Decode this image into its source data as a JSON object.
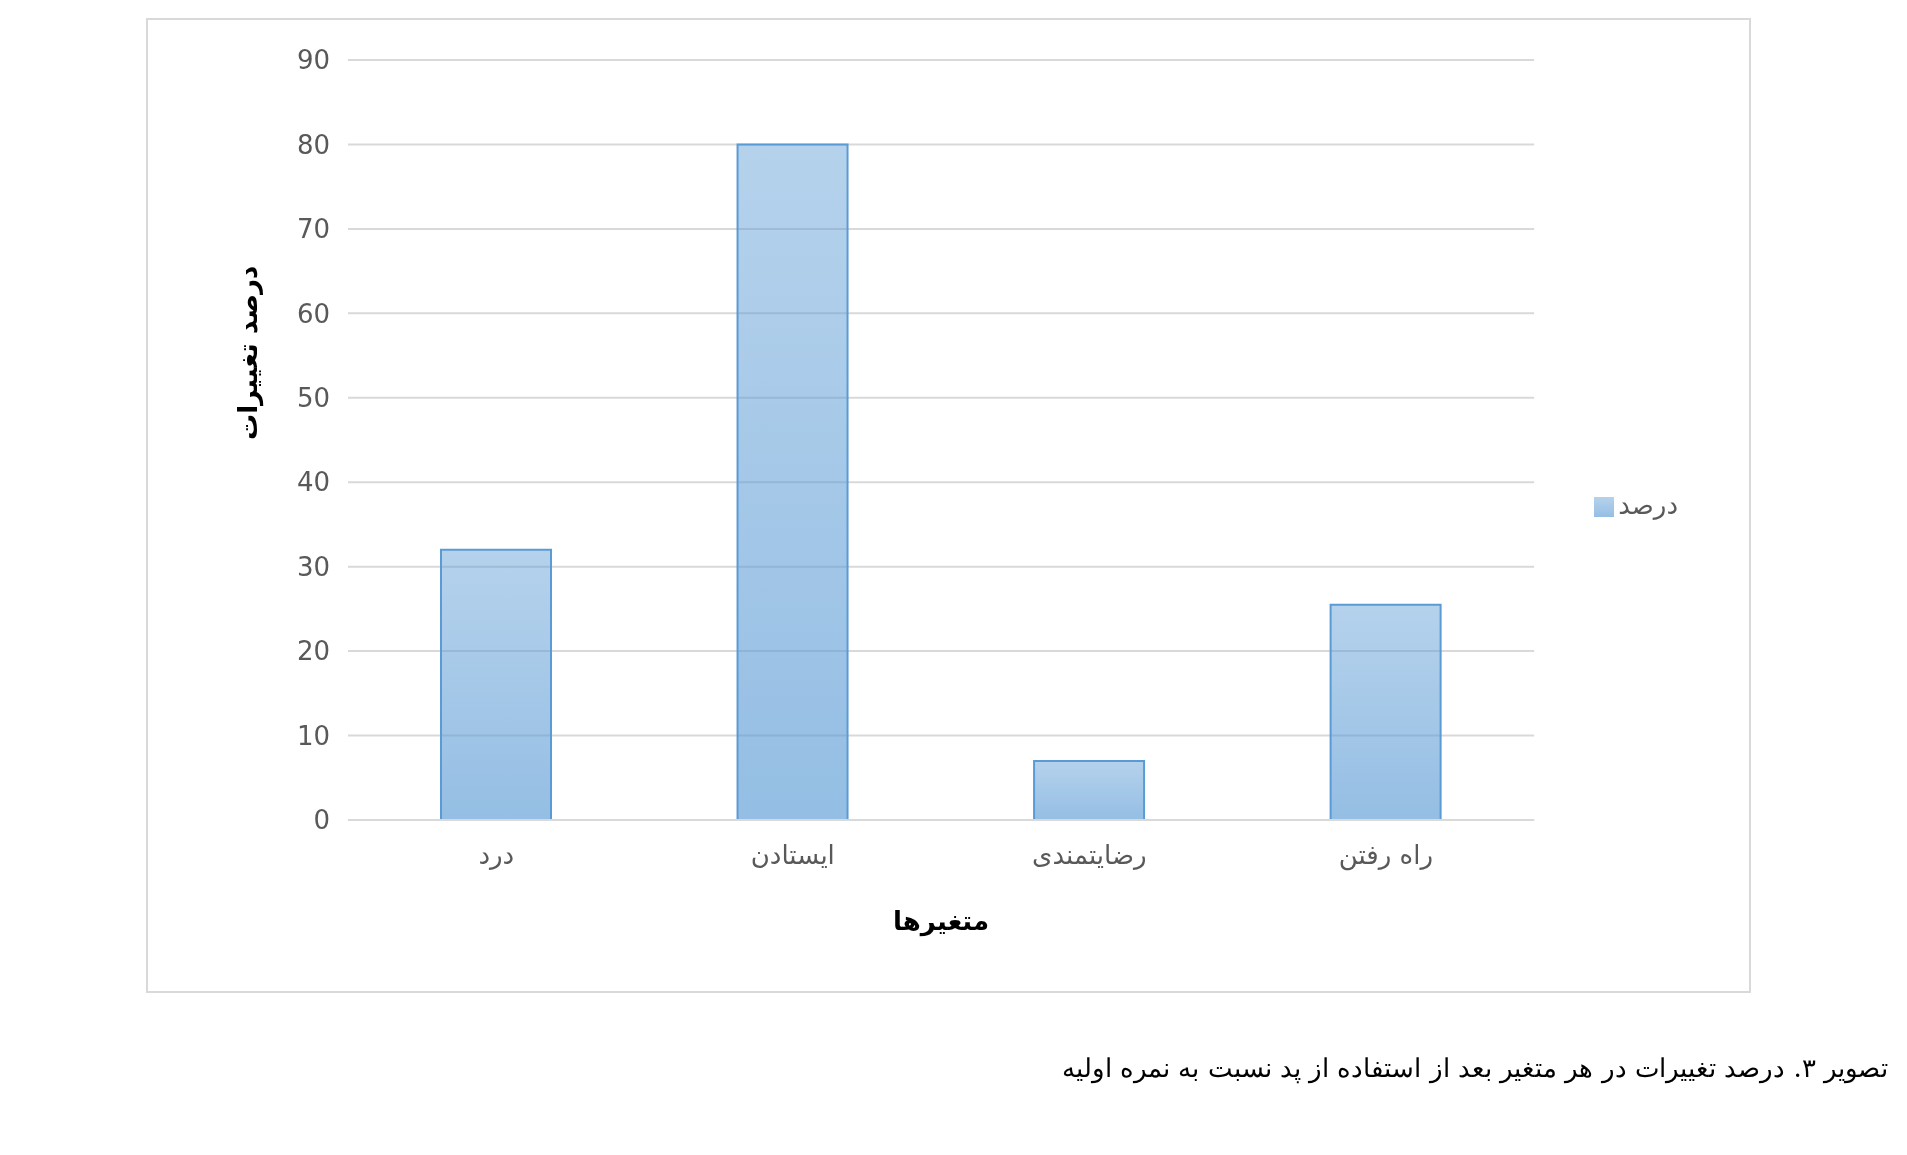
{
  "chart_data": {
    "type": "bar",
    "categories": [
      "درد",
      "ایستادن",
      "رضایتمندی",
      "راه رفتن"
    ],
    "series": [
      {
        "name": "درصد",
        "color": "#5b9bd5",
        "values": [
          32,
          80,
          7,
          25.5
        ]
      }
    ],
    "xlabel": "متغیرها",
    "ylabel": "درصد تغییرات",
    "ylim": [
      0,
      90
    ],
    "yticks": [
      0,
      10,
      20,
      30,
      40,
      50,
      60,
      70,
      80,
      90
    ],
    "grid": "y",
    "legend": "right",
    "annotations": [
      "تصویر ۳. درصد تغییرات در هر متغیر بعد از استفاده از پد نسبت به نمره اولیه"
    ]
  }
}
